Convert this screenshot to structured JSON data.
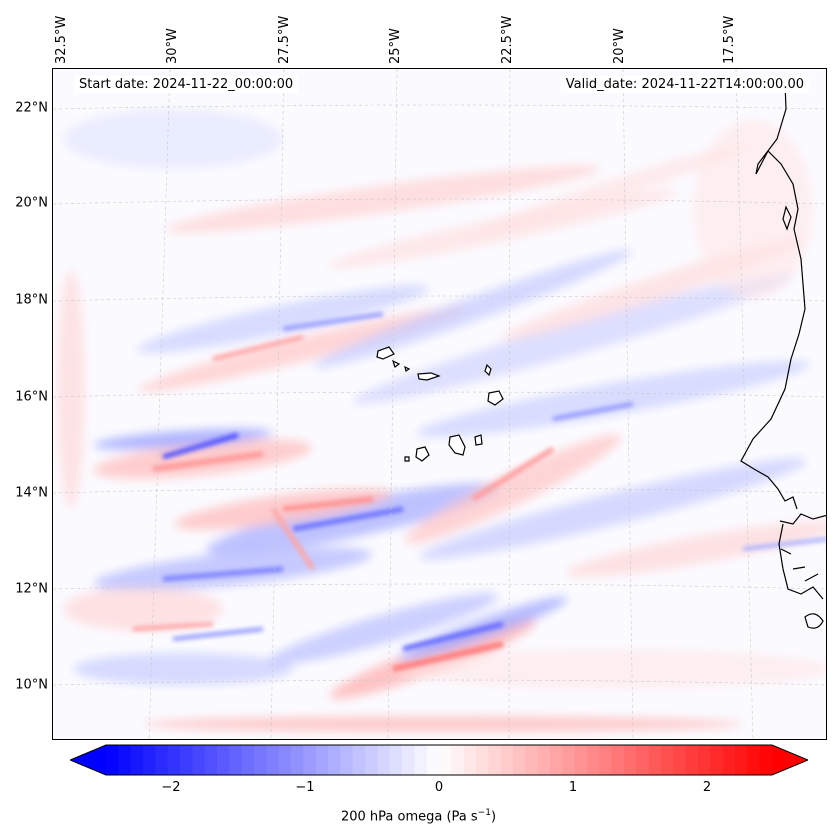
{
  "header": {
    "start_date": "Start date: 2024-11-22_00:00:00",
    "valid_date": "Valid_date: 2024-11-22T14:00:00.00"
  },
  "axes": {
    "lon_labels": [
      "32.5°W",
      "30°W",
      "27.5°W",
      "25°W",
      "22.5°W",
      "20°W",
      "17.5°W"
    ],
    "lat_labels": [
      "22°N",
      "20°N",
      "18°N",
      "16°N",
      "14°N",
      "12°N",
      "10°N"
    ]
  },
  "colorbar": {
    "ticks": [
      "−2",
      "−1",
      "0",
      "1",
      "2"
    ],
    "label_prefix": "200 hPa omega (Pa s",
    "label_exp": "−1",
    "label_suffix": ")",
    "min": -2.7,
    "max": 2.7,
    "negative_color": "#0000ff",
    "positive_color": "#ff0000",
    "zero_color": "#ffffff"
  },
  "colors": {
    "coast": "#000000",
    "grid": "#c8c8c8"
  }
}
